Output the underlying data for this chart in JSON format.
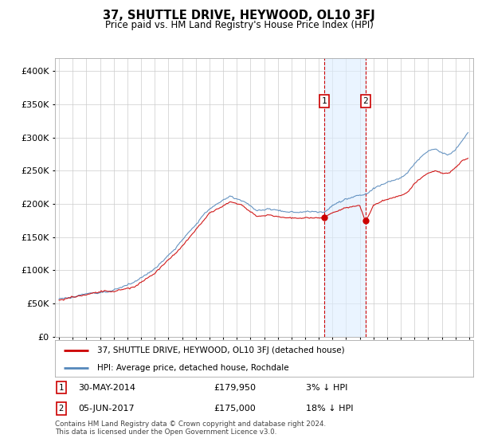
{
  "title": "37, SHUTTLE DRIVE, HEYWOOD, OL10 3FJ",
  "subtitle": "Price paid vs. HM Land Registry's House Price Index (HPI)",
  "legend_line1": "37, SHUTTLE DRIVE, HEYWOOD, OL10 3FJ (detached house)",
  "legend_line2": "HPI: Average price, detached house, Rochdale",
  "sale1_date": "30-MAY-2014",
  "sale1_price": "£179,950",
  "sale1_note": "3% ↓ HPI",
  "sale1_x": 2014.41,
  "sale1_y": 179950,
  "sale2_date": "05-JUN-2017",
  "sale2_price": "£175,000",
  "sale2_note": "18% ↓ HPI",
  "sale2_x": 2017.43,
  "sale2_y": 175000,
  "footer": "Contains HM Land Registry data © Crown copyright and database right 2024.\nThis data is licensed under the Open Government Licence v3.0.",
  "yticks": [
    0,
    50000,
    100000,
    150000,
    200000,
    250000,
    300000,
    350000,
    400000
  ],
  "ylim": [
    0,
    420000
  ],
  "xlim": [
    1994.7,
    2025.3
  ],
  "hpi_line_color": "#5588bb",
  "price_line_color": "#cc0000",
  "marker_color": "#cc0000",
  "shade_color": "#ddeeff",
  "annot_box_color": "#cc0000",
  "background_color": "#ffffff",
  "grid_color": "#cccccc"
}
